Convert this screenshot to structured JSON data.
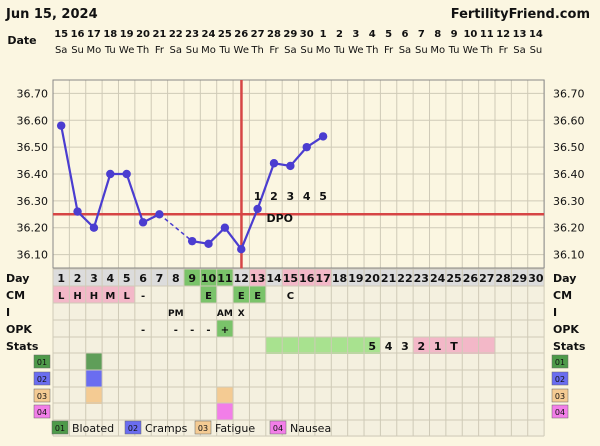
{
  "header": {
    "date": "Jun 15, 2024",
    "site": "FertilityFriend.com",
    "date_label": "Date"
  },
  "colors": {
    "background": "#fbf6e1",
    "grid": "#cfcab7",
    "line": "#4b3dd0",
    "coverline": "#d64545",
    "green": "#7ac36a",
    "green_light": "#a8e28f",
    "pink": "#f3b8c8",
    "purple": "#6a6df0",
    "orange": "#f4cb93",
    "magenta": "#f27ee8"
  },
  "chart_data": {
    "type": "line",
    "x": [
      1,
      2,
      3,
      4,
      5,
      6,
      7,
      8,
      9,
      10,
      11,
      12,
      13,
      14,
      15,
      16,
      17
    ],
    "y": [
      36.58,
      36.26,
      36.2,
      36.4,
      36.4,
      36.22,
      36.25,
      null,
      36.15,
      36.14,
      36.2,
      36.12,
      36.27,
      36.44,
      36.43,
      36.5,
      36.54
    ],
    "dashed_segments": [
      [
        7,
        9
      ]
    ],
    "ylim": [
      36.05,
      36.75
    ],
    "yticks": [
      "36.70",
      "36.60",
      "36.50",
      "36.40",
      "36.30",
      "36.20",
      "36.10"
    ],
    "coverline": 36.25,
    "ovulation_day": 12,
    "dpo_numbers": [
      {
        "day": 13,
        "label": "1"
      },
      {
        "day": 14,
        "label": "2"
      },
      {
        "day": 15,
        "label": "3"
      },
      {
        "day": 16,
        "label": "4"
      },
      {
        "day": 17,
        "label": "5"
      }
    ],
    "dpo_label": "DPO",
    "date_numbers": [
      "15",
      "16",
      "17",
      "18",
      "19",
      "20",
      "21",
      "22",
      "23",
      "24",
      "25",
      "26",
      "27",
      "28",
      "29",
      "30",
      "1",
      "2",
      "3",
      "4",
      "5",
      "6",
      "7",
      "8",
      "9",
      "10",
      "11",
      "12",
      "13",
      "14"
    ],
    "weekdays": [
      "Sa",
      "Su",
      "Mo",
      "Tu",
      "We",
      "Th",
      "Fr",
      "Sa",
      "Su",
      "Mo",
      "Tu",
      "We",
      "Th",
      "Fr",
      "Sa",
      "Su",
      "Mo",
      "Tu",
      "We",
      "Th",
      "Fr",
      "Sa",
      "Su",
      "Mo",
      "Tu",
      "We",
      "Th",
      "Fr",
      "Sa",
      "Su"
    ],
    "cycle_days": [
      "1",
      "2",
      "3",
      "4",
      "5",
      "6",
      "7",
      "8",
      "9",
      "10",
      "11",
      "12",
      "13",
      "14",
      "15",
      "16",
      "17",
      "18",
      "19",
      "20",
      "21",
      "22",
      "23",
      "24",
      "25",
      "26",
      "27",
      "28",
      "29",
      "30"
    ],
    "rows": {
      "day": "Day",
      "cm": "CM",
      "i": "I",
      "opk": "OPK",
      "stats": "Stats"
    },
    "cm_values": [
      "L",
      "H",
      "H",
      "M",
      "L",
      "-",
      "",
      "",
      "",
      "E",
      "",
      "E",
      "E",
      "",
      "C"
    ],
    "i_values": [
      "",
      "",
      "",
      "",
      "",
      "",
      "",
      "PM",
      "",
      "",
      "AM",
      "X"
    ],
    "opk_values": [
      "",
      "",
      "",
      "",
      "",
      "-",
      "",
      "-",
      "-",
      "-",
      "+"
    ],
    "stats_values": [
      {
        "day": 20,
        "label": "5"
      },
      {
        "day": 21,
        "label": "4"
      },
      {
        "day": 22,
        "label": "3"
      },
      {
        "day": 23,
        "label": "2"
      },
      {
        "day": 24,
        "label": "1"
      },
      {
        "day": 25,
        "label": "T"
      }
    ],
    "symptom_codes": [
      "01",
      "02",
      "03",
      "04"
    ],
    "symptoms": [
      {
        "code": "01",
        "name": "Bloated",
        "days": [
          3
        ]
      },
      {
        "code": "02",
        "name": "Cramps",
        "days": [
          3
        ]
      },
      {
        "code": "03",
        "name": "Fatigue",
        "days": [
          3,
          11
        ]
      },
      {
        "code": "04",
        "name": "Nausea",
        "days": [
          11
        ]
      }
    ]
  }
}
